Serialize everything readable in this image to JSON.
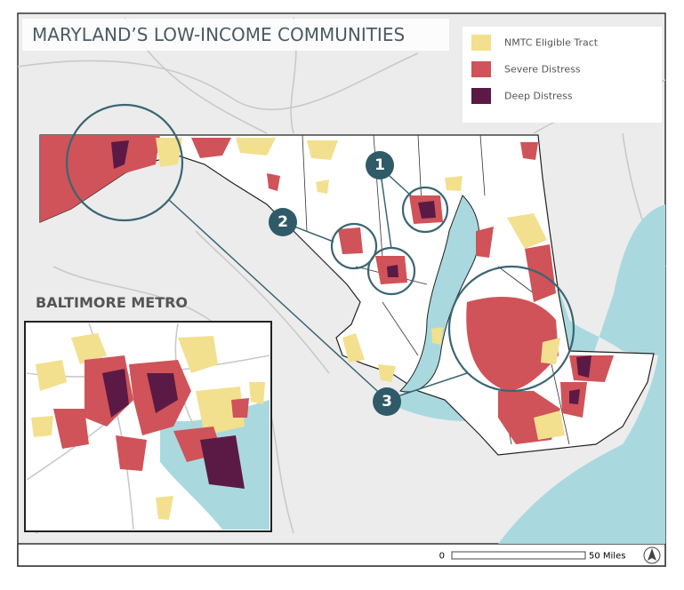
{
  "title": "MARYLAND’S LOW-INCOME COMMUNITIES",
  "legend": [
    {
      "label": "NMTC Eligible Tract",
      "color": "#f2e08e"
    },
    {
      "label": "Severe Distress",
      "color": "#cf5358"
    },
    {
      "label": "Deep Distress",
      "color": "#5b1a45"
    }
  ],
  "callouts": [
    "1",
    "2",
    "3"
  ],
  "inset": {
    "title": "BALTIMORE METRO"
  },
  "scale": {
    "start": "0",
    "end": "50 Miles"
  }
}
